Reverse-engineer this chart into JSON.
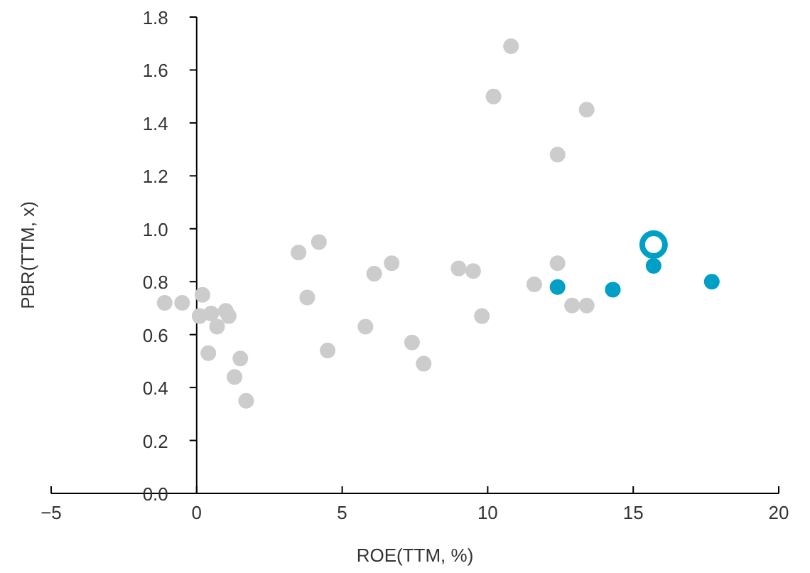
{
  "chart_data": {
    "type": "scatter",
    "xlabel": "ROE(TTM, %)",
    "ylabel": "PBR(TTM, x)",
    "xlim": [
      -5,
      20
    ],
    "xticks": [
      {
        "value": -5,
        "label": "−5"
      },
      0,
      5,
      10,
      15,
      20
    ],
    "ylim": [
      0,
      1.8
    ],
    "yticks": [
      {
        "value": 0,
        "label": "0.0"
      },
      0.2,
      0.4,
      0.6,
      0.8,
      {
        "value": 1,
        "label": "1.0"
      },
      1.2,
      1.4,
      1.6,
      1.8
    ],
    "marker": "circle",
    "series": [
      {
        "color": "#cccccc",
        "x": [
          -1.1,
          -0.5,
          0.2,
          0.1,
          0.5,
          0.7,
          0.4,
          1.0,
          1.1,
          1.3,
          1.5,
          1.7,
          3.5,
          4.2,
          3.8,
          4.5,
          5.8,
          6.1,
          6.7,
          7.4,
          7.8,
          9.0,
          9.5,
          9.8,
          10.8,
          10.2,
          13.4,
          12.4,
          12.4,
          11.6,
          12.9,
          13.4
        ],
        "values": [
          0.72,
          0.72,
          0.75,
          0.67,
          0.68,
          0.63,
          0.53,
          0.69,
          0.67,
          0.44,
          0.51,
          0.35,
          0.91,
          0.95,
          0.74,
          0.54,
          0.63,
          0.83,
          0.87,
          0.57,
          0.49,
          0.85,
          0.84,
          0.67,
          1.69,
          1.5,
          1.45,
          1.28,
          0.87,
          0.79,
          0.71,
          0.71
        ]
      },
      {
        "color": "#00a0c6",
        "x": [
          12.4,
          14.3,
          15.7,
          17.7
        ],
        "values": [
          0.78,
          0.77,
          0.86,
          0.8
        ]
      },
      {
        "color": "#00a0c6",
        "x": [
          15.7
        ],
        "values": [
          0.94
        ]
      }
    ]
  }
}
